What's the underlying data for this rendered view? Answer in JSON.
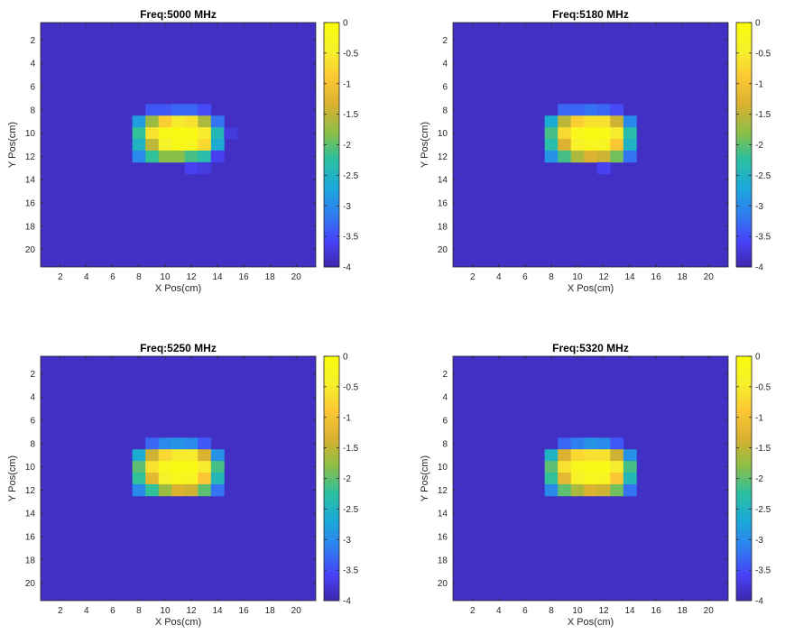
{
  "figure": {
    "background": "#ffffff",
    "colormap": [
      "#3e26a8",
      "#4743f8",
      "#2f7ff0",
      "#1ba9da",
      "#2bc09e",
      "#8dbe46",
      "#d8b131",
      "#fcc734",
      "#f6f02c",
      "#f9fb0e"
    ]
  },
  "chart_data": [
    {
      "type": "heatmap",
      "title": "Freq:5000 MHz",
      "xlabel": "X Pos(cm)",
      "ylabel": "Y Pos(cm)",
      "x_range": [
        0.5,
        21.5
      ],
      "y_range": [
        0.5,
        21.5
      ],
      "x_ticks": [
        "2",
        "4",
        "6",
        "8",
        "10",
        "12",
        "14",
        "16",
        "18",
        "20"
      ],
      "y_ticks": [
        "2",
        "4",
        "6",
        "8",
        "10",
        "12",
        "14",
        "16",
        "18",
        "20"
      ],
      "colorbar_ticks": [
        "0",
        "-0.5",
        "-1",
        "-1.5",
        "-2",
        "-2.5",
        "-3",
        "-3.5",
        "-4"
      ],
      "clim": [
        -4,
        0
      ],
      "background_value": -3.85,
      "cells": [
        [
          8,
          9,
          -3.4
        ],
        [
          8,
          10,
          -3.4
        ],
        [
          8,
          11,
          -3.3
        ],
        [
          8,
          12,
          -3.3
        ],
        [
          8,
          13,
          -3.5
        ],
        [
          9,
          8,
          -2.8
        ],
        [
          9,
          9,
          -1.7
        ],
        [
          9,
          10,
          -0.8
        ],
        [
          9,
          11,
          -0.5
        ],
        [
          9,
          12,
          -0.6
        ],
        [
          9,
          13,
          -1.6
        ],
        [
          9,
          14,
          -3.2
        ],
        [
          10,
          8,
          -2.2
        ],
        [
          10,
          9,
          -0.6
        ],
        [
          10,
          10,
          -0.15
        ],
        [
          10,
          11,
          -0.05
        ],
        [
          10,
          12,
          -0.1
        ],
        [
          10,
          13,
          -0.5
        ],
        [
          10,
          14,
          -2.4
        ],
        [
          10,
          15,
          -3.7
        ],
        [
          11,
          8,
          -2.5
        ],
        [
          11,
          9,
          -1.5
        ],
        [
          11,
          10,
          -0.4
        ],
        [
          11,
          11,
          -0.15
        ],
        [
          11,
          12,
          -0.2
        ],
        [
          11,
          13,
          -0.7
        ],
        [
          11,
          14,
          -2.6
        ],
        [
          12,
          8,
          -3.0
        ],
        [
          12,
          9,
          -2.2
        ],
        [
          12,
          10,
          -1.8
        ],
        [
          12,
          11,
          -1.8
        ],
        [
          12,
          12,
          -2.1
        ],
        [
          12,
          13,
          -2.3
        ],
        [
          12,
          14,
          -3.6
        ],
        [
          13,
          12,
          -3.6
        ],
        [
          13,
          13,
          -3.7
        ]
      ]
    },
    {
      "type": "heatmap",
      "title": "Freq:5180 MHz",
      "xlabel": "X Pos(cm)",
      "ylabel": "Y Pos(cm)",
      "x_range": [
        0.5,
        21.5
      ],
      "y_range": [
        0.5,
        21.5
      ],
      "x_ticks": [
        "2",
        "4",
        "6",
        "8",
        "10",
        "12",
        "14",
        "16",
        "18",
        "20"
      ],
      "y_ticks": [
        "2",
        "4",
        "6",
        "8",
        "10",
        "12",
        "14",
        "16",
        "18",
        "20"
      ],
      "colorbar_ticks": [
        "0",
        "-0.5",
        "-1",
        "-1.5",
        "-2",
        "-2.5",
        "-3",
        "-3.5",
        "-4"
      ],
      "clim": [
        -4,
        0
      ],
      "background_value": -3.85,
      "cells": [
        [
          8,
          9,
          -3.3
        ],
        [
          8,
          10,
          -3.3
        ],
        [
          8,
          11,
          -3.2
        ],
        [
          8,
          12,
          -3.3
        ],
        [
          8,
          13,
          -3.5
        ],
        [
          9,
          8,
          -2.6
        ],
        [
          9,
          9,
          -1.5
        ],
        [
          9,
          10,
          -0.8
        ],
        [
          9,
          11,
          -0.6
        ],
        [
          9,
          12,
          -0.6
        ],
        [
          9,
          13,
          -1.4
        ],
        [
          9,
          14,
          -3.0
        ],
        [
          10,
          8,
          -2.1
        ],
        [
          10,
          9,
          -0.7
        ],
        [
          10,
          10,
          -0.2
        ],
        [
          10,
          11,
          -0.05
        ],
        [
          10,
          12,
          -0.1
        ],
        [
          10,
          13,
          -0.5
        ],
        [
          10,
          14,
          -2.3
        ],
        [
          11,
          8,
          -2.3
        ],
        [
          11,
          9,
          -1.3
        ],
        [
          11,
          10,
          -0.4
        ],
        [
          11,
          11,
          -0.2
        ],
        [
          11,
          12,
          -0.3
        ],
        [
          11,
          13,
          -0.9
        ],
        [
          11,
          14,
          -2.5
        ],
        [
          12,
          8,
          -2.9
        ],
        [
          12,
          9,
          -2.1
        ],
        [
          12,
          10,
          -1.6
        ],
        [
          12,
          11,
          -1.3
        ],
        [
          12,
          12,
          -1.4
        ],
        [
          12,
          13,
          -1.9
        ],
        [
          12,
          14,
          -3.2
        ],
        [
          13,
          12,
          -3.6
        ]
      ]
    },
    {
      "type": "heatmap",
      "title": "Freq:5250 MHz",
      "xlabel": "X Pos(cm)",
      "ylabel": "Y Pos(cm)",
      "x_range": [
        0.5,
        21.5
      ],
      "y_range": [
        0.5,
        21.5
      ],
      "x_ticks": [
        "2",
        "4",
        "6",
        "8",
        "10",
        "12",
        "14",
        "16",
        "18",
        "20"
      ],
      "y_ticks": [
        "2",
        "4",
        "6",
        "8",
        "10",
        "12",
        "14",
        "16",
        "18",
        "20"
      ],
      "colorbar_ticks": [
        "0",
        "-0.5",
        "-1",
        "-1.5",
        "-2",
        "-2.5",
        "-3",
        "-3.5",
        "-4"
      ],
      "clim": [
        -4,
        0
      ],
      "background_value": -3.85,
      "cells": [
        [
          8,
          9,
          -3.3
        ],
        [
          8,
          10,
          -3.0
        ],
        [
          8,
          11,
          -2.9
        ],
        [
          8,
          12,
          -3.0
        ],
        [
          8,
          13,
          -3.4
        ],
        [
          9,
          8,
          -2.6
        ],
        [
          9,
          9,
          -1.4
        ],
        [
          9,
          10,
          -0.7
        ],
        [
          9,
          11,
          -0.5
        ],
        [
          9,
          12,
          -0.5
        ],
        [
          9,
          13,
          -1.3
        ],
        [
          9,
          14,
          -2.9
        ],
        [
          10,
          8,
          -2.0
        ],
        [
          10,
          9,
          -0.6
        ],
        [
          10,
          10,
          -0.2
        ],
        [
          10,
          11,
          -0.05
        ],
        [
          10,
          12,
          -0.1
        ],
        [
          10,
          13,
          -0.5
        ],
        [
          10,
          14,
          -2.1
        ],
        [
          11,
          8,
          -2.2
        ],
        [
          11,
          9,
          -1.2
        ],
        [
          11,
          10,
          -0.4
        ],
        [
          11,
          11,
          -0.2
        ],
        [
          11,
          12,
          -0.3
        ],
        [
          11,
          13,
          -0.9
        ],
        [
          11,
          14,
          -2.4
        ],
        [
          12,
          8,
          -3.0
        ],
        [
          12,
          9,
          -2.2
        ],
        [
          12,
          10,
          -1.7
        ],
        [
          12,
          11,
          -1.3
        ],
        [
          12,
          12,
          -1.4
        ],
        [
          12,
          13,
          -2.0
        ],
        [
          12,
          14,
          -3.2
        ]
      ]
    },
    {
      "type": "heatmap",
      "title": "Freq:5320 MHz",
      "xlabel": "X Pos(cm)",
      "ylabel": "Y Pos(cm)",
      "x_range": [
        0.5,
        21.5
      ],
      "y_range": [
        0.5,
        21.5
      ],
      "x_ticks": [
        "2",
        "4",
        "6",
        "8",
        "10",
        "12",
        "14",
        "16",
        "18",
        "20"
      ],
      "y_ticks": [
        "2",
        "4",
        "6",
        "8",
        "10",
        "12",
        "14",
        "16",
        "18",
        "20"
      ],
      "colorbar_ticks": [
        "0",
        "-0.5",
        "-1",
        "-1.5",
        "-2",
        "-2.5",
        "-3",
        "-3.5",
        "-4"
      ],
      "clim": [
        -4,
        0
      ],
      "background_value": -3.85,
      "cells": [
        [
          8,
          9,
          -3.3
        ],
        [
          8,
          10,
          -3.1
        ],
        [
          8,
          11,
          -2.9
        ],
        [
          8,
          12,
          -3.0
        ],
        [
          8,
          13,
          -3.4
        ],
        [
          9,
          8,
          -2.5
        ],
        [
          9,
          9,
          -1.3
        ],
        [
          9,
          10,
          -0.7
        ],
        [
          9,
          11,
          -0.6
        ],
        [
          9,
          12,
          -0.6
        ],
        [
          9,
          13,
          -1.4
        ],
        [
          9,
          14,
          -2.9
        ],
        [
          10,
          8,
          -2.0
        ],
        [
          10,
          9,
          -0.6
        ],
        [
          10,
          10,
          -0.2
        ],
        [
          10,
          11,
          -0.1
        ],
        [
          10,
          12,
          -0.1
        ],
        [
          10,
          13,
          -0.5
        ],
        [
          10,
          14,
          -2.1
        ],
        [
          11,
          8,
          -2.2
        ],
        [
          11,
          9,
          -1.2
        ],
        [
          11,
          10,
          -0.4
        ],
        [
          11,
          11,
          -0.2
        ],
        [
          11,
          12,
          -0.3
        ],
        [
          11,
          13,
          -0.9
        ],
        [
          11,
          14,
          -2.4
        ],
        [
          12,
          8,
          -3.0
        ],
        [
          12,
          9,
          -2.0
        ],
        [
          12,
          10,
          -1.6
        ],
        [
          12,
          11,
          -1.3
        ],
        [
          12,
          12,
          -1.4
        ],
        [
          12,
          13,
          -1.9
        ],
        [
          12,
          14,
          -3.2
        ]
      ]
    }
  ]
}
